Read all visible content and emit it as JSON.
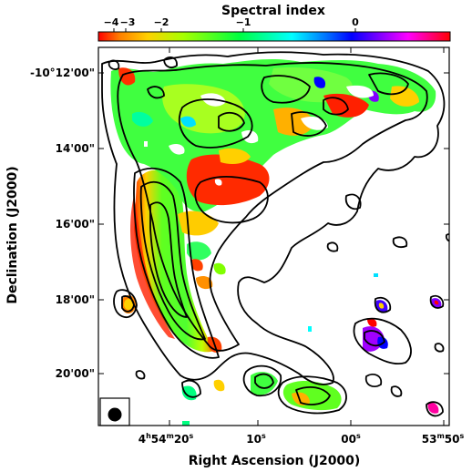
{
  "figure": {
    "colorbar": {
      "title": "Spectral index",
      "colormap": [
        "#ff0000",
        "#ff7f00",
        "#ffff00",
        "#7fff00",
        "#00ff00",
        "#00ffff",
        "#0080ff",
        "#0000ff",
        "#8000ff",
        "#ff00ff",
        "#ff0080",
        "#ff0000"
      ],
      "ticks": [
        {
          "label": "−4",
          "value": -4
        },
        {
          "label": "−3",
          "value": -3
        },
        {
          "label": "−2",
          "value": -2
        },
        {
          "label": "−1",
          "value": -1
        },
        {
          "label": "0",
          "value": 0
        }
      ]
    },
    "xaxis": {
      "label": "Right Ascension (J2000)",
      "ticks": [
        {
          "main": "4",
          "u1": "h",
          "main2": "54",
          "u2": "m",
          "main3": "20",
          "u3": "s"
        },
        {
          "main": "10",
          "u1": "s"
        },
        {
          "main": "00",
          "u1": "s"
        },
        {
          "main": "53",
          "u1": "m",
          "main2": "50",
          "u2": "s"
        }
      ]
    },
    "yaxis": {
      "label": "Declination (J2000)",
      "ticks": [
        "-10°12'00\"",
        "14'00\"",
        "16'00\"",
        "18'00\"",
        "20'00\""
      ]
    },
    "beam": {
      "shape": "ellipse",
      "color": "#000000"
    }
  }
}
